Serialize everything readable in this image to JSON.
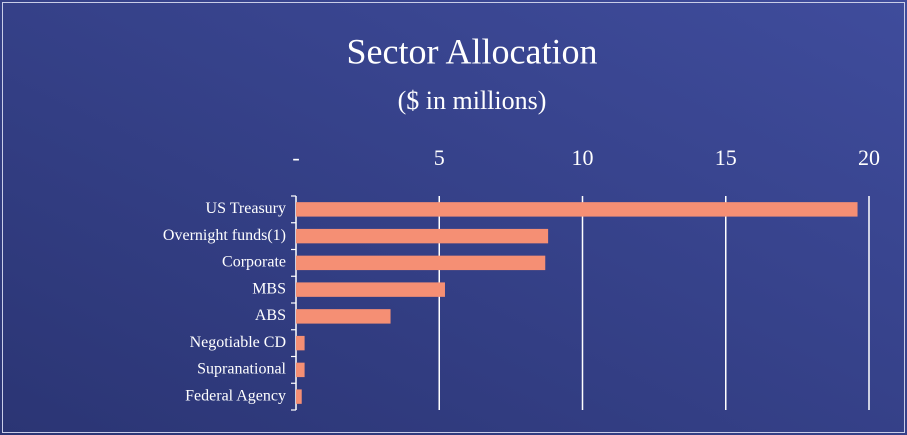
{
  "chart_data": {
    "type": "barh",
    "title": "Sector Allocation",
    "subtitle": "($ in millions)",
    "categories": [
      "US Treasury",
      "Overnight funds(1)",
      "Corporate",
      "MBS",
      "ABS",
      "Negotiable CD",
      "Supranational",
      "Federal Agency"
    ],
    "values": [
      19.6,
      8.8,
      8.7,
      5.2,
      3.3,
      0.3,
      0.3,
      0.2
    ],
    "color": "#f58f74",
    "xlim": [
      0,
      20
    ],
    "xticks": [
      {
        "value": 0,
        "label": "-"
      },
      5,
      10,
      15,
      20
    ],
    "grid": true
  }
}
